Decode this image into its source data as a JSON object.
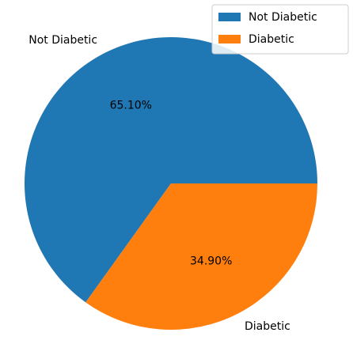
{
  "chart_data": {
    "type": "pie",
    "title": "",
    "start_angle_deg": 0,
    "direction": "counterclockwise",
    "legend_placement": "top-right",
    "slices": [
      {
        "label": "Not Diabetic",
        "value": 65.1,
        "pct_label": "65.10%",
        "color": "#1f77b4"
      },
      {
        "label": "Diabetic",
        "value": 34.9,
        "pct_label": "34.90%",
        "color": "#ff7f0e"
      }
    ],
    "legend": {
      "entries": [
        {
          "label": "Not Diabetic",
          "color": "#1f77b4"
        },
        {
          "label": "Diabetic",
          "color": "#ff7f0e"
        }
      ]
    }
  }
}
